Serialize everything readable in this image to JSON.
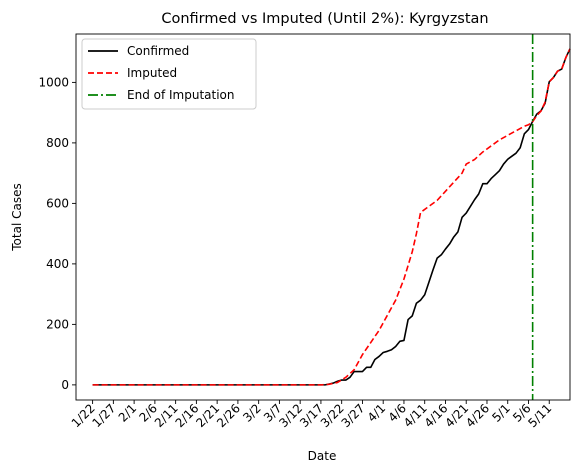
{
  "chart_data": {
    "type": "line",
    "title": "Confirmed vs Imputed (Until 2%): Kyrgyzstan",
    "xlabel": "Date",
    "ylabel": "Total Cases",
    "xlim": [
      -4,
      115
    ],
    "ylim": [
      -50,
      1160
    ],
    "grid": false,
    "legend_position": "top-left",
    "x_tick_labels": [
      "1/22",
      "1/27",
      "2/1",
      "2/6",
      "2/11",
      "2/16",
      "2/21",
      "2/26",
      "3/2",
      "3/7",
      "3/12",
      "3/17",
      "3/22",
      "3/27",
      "4/1",
      "4/6",
      "4/11",
      "4/16",
      "4/21",
      "4/26",
      "5/1",
      "5/6",
      "5/11"
    ],
    "y_ticks": [
      0,
      200,
      400,
      600,
      800,
      1000
    ],
    "series": [
      {
        "name": "Confirmed",
        "color": "#000000",
        "style": "solid",
        "points": [
          [
            0,
            0
          ],
          [
            56,
            0
          ],
          [
            57,
            3
          ],
          [
            58,
            6
          ],
          [
            59,
            12
          ],
          [
            60,
            16
          ],
          [
            61,
            16
          ],
          [
            62,
            25
          ],
          [
            63,
            44
          ],
          [
            64,
            44
          ],
          [
            65,
            44
          ],
          [
            66,
            58
          ],
          [
            67,
            58
          ],
          [
            68,
            84
          ],
          [
            69,
            94
          ],
          [
            70,
            107
          ],
          [
            71,
            111
          ],
          [
            72,
            116
          ],
          [
            73,
            127
          ],
          [
            74,
            144
          ],
          [
            75,
            147
          ],
          [
            76,
            216
          ],
          [
            77,
            228
          ],
          [
            78,
            270
          ],
          [
            79,
            280
          ],
          [
            80,
            298
          ],
          [
            81,
            339
          ],
          [
            82,
            380
          ],
          [
            83,
            419
          ],
          [
            84,
            430
          ],
          [
            85,
            449
          ],
          [
            86,
            466
          ],
          [
            87,
            489
          ],
          [
            88,
            506
          ],
          [
            89,
            554
          ],
          [
            90,
            568
          ],
          [
            91,
            590
          ],
          [
            92,
            612
          ],
          [
            93,
            631
          ],
          [
            94,
            665
          ],
          [
            95,
            665
          ],
          [
            96,
            682
          ],
          [
            97,
            695
          ],
          [
            98,
            708
          ],
          [
            99,
            730
          ],
          [
            100,
            746
          ],
          [
            101,
            756
          ],
          [
            102,
            766
          ],
          [
            103,
            784
          ],
          [
            104,
            830
          ],
          [
            105,
            844
          ],
          [
            106,
            871
          ],
          [
            107,
            895
          ],
          [
            108,
            906
          ],
          [
            109,
            931
          ],
          [
            110,
            1002
          ],
          [
            111,
            1016
          ],
          [
            112,
            1037
          ],
          [
            113,
            1044
          ],
          [
            114,
            1082
          ],
          [
            115,
            1111
          ]
        ]
      },
      {
        "name": "Imputed",
        "color": "#ff0000",
        "style": "dashed",
        "points": [
          [
            0,
            0
          ],
          [
            55,
            0
          ],
          [
            57,
            2
          ],
          [
            59,
            8
          ],
          [
            61,
            25
          ],
          [
            63,
            50
          ],
          [
            65,
            100
          ],
          [
            67,
            140
          ],
          [
            69,
            180
          ],
          [
            71,
            230
          ],
          [
            73,
            280
          ],
          [
            75,
            350
          ],
          [
            77,
            440
          ],
          [
            78,
            500
          ],
          [
            79,
            570
          ],
          [
            81,
            590
          ],
          [
            83,
            610
          ],
          [
            85,
            640
          ],
          [
            87,
            670
          ],
          [
            89,
            700
          ],
          [
            90,
            730
          ],
          [
            92,
            745
          ],
          [
            94,
            770
          ],
          [
            96,
            790
          ],
          [
            98,
            810
          ],
          [
            100,
            825
          ],
          [
            102,
            840
          ],
          [
            104,
            855
          ],
          [
            105,
            860
          ],
          [
            106,
            870
          ],
          [
            107,
            890
          ],
          [
            108,
            905
          ],
          [
            109,
            935
          ],
          [
            110,
            1002
          ],
          [
            111,
            1016
          ],
          [
            112,
            1037
          ],
          [
            113,
            1044
          ],
          [
            114,
            1082
          ],
          [
            115,
            1111
          ]
        ]
      },
      {
        "name": "End of Imputation",
        "color": "#008000",
        "style": "dashdot",
        "vertical_x": 106
      }
    ]
  }
}
